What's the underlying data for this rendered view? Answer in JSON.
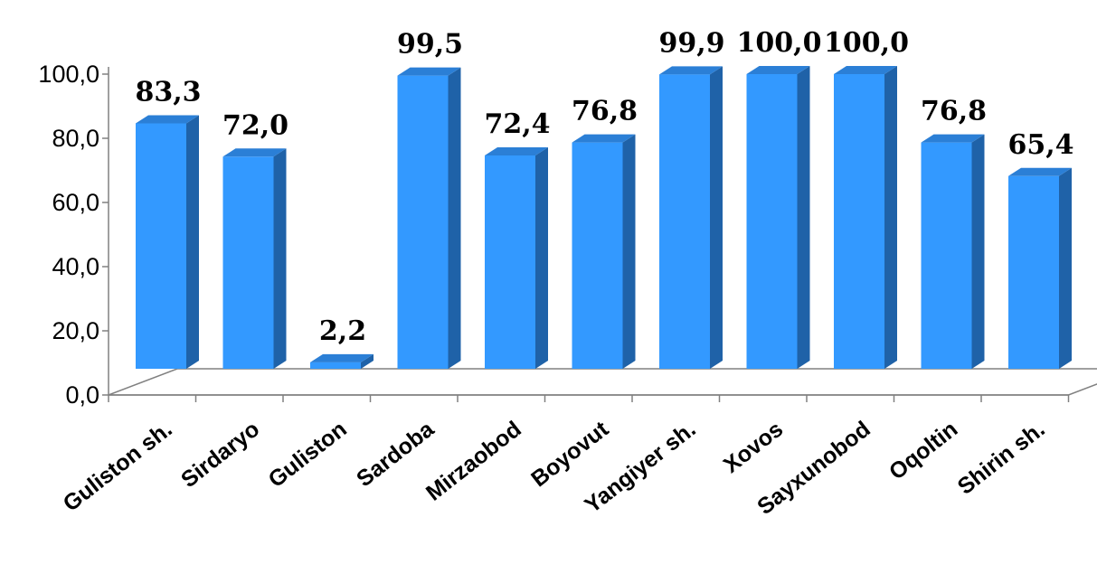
{
  "chart_data": {
    "type": "bar",
    "title": "",
    "xlabel": "",
    "ylabel": "",
    "categories": [
      "Guliston sh.",
      "Sirdaryo",
      "Guliston",
      "Sardoba",
      "Mirzaobod",
      "Boyovut",
      "Yangiyer sh.",
      "Xovos",
      "Sayxunobod",
      "Oqoltin",
      "Shirin sh."
    ],
    "values": [
      83.3,
      72.0,
      2.2,
      99.5,
      72.4,
      76.8,
      99.9,
      100.0,
      100.0,
      76.8,
      65.4
    ],
    "value_labels": [
      "83,3",
      "72,0",
      "2,2",
      "99,5",
      "72,4",
      "76,8",
      "99,9",
      "100,0",
      "100,0",
      "76,8",
      "65,4"
    ],
    "ylim": [
      0,
      100
    ],
    "yticks": [
      0,
      20,
      40,
      60,
      80,
      100
    ],
    "ytick_labels": [
      "0,0",
      "20,0",
      "40,0",
      "60,0",
      "80,0",
      "100,0"
    ],
    "grid": false,
    "legend": "none",
    "style": "3d-column",
    "colors": {
      "front": "#3399ff",
      "side": "#1f62a8",
      "top": "#2b7fd6",
      "axis": "#808080"
    }
  }
}
